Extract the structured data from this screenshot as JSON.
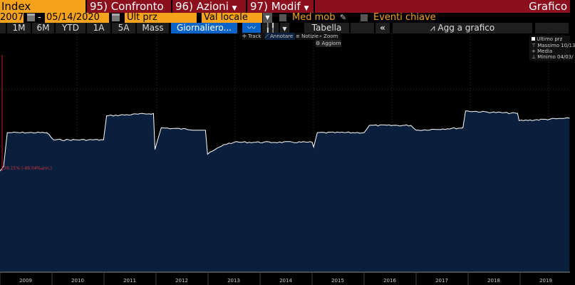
{
  "toolbar": {
    "security": "Index",
    "confronto": "95) Confronto",
    "azioni": "96) Azioni",
    "modif": "97) Modif",
    "grafico": "Grafico",
    "start_date": "2007",
    "date_sep": "-",
    "end_date": "05/14/2020",
    "price_field": "Ult prz",
    "currency": "Val locale",
    "moving_avg": "Med mob",
    "events": "Eventi chiave"
  },
  "periods": [
    "1M",
    "6M",
    "YTD",
    "1A",
    "5A",
    "Mass"
  ],
  "frequency": "Giornaliero...",
  "table_label": "Tabella",
  "collapse_label": "«",
  "add_to_chart": "Agg a grafico",
  "tools": {
    "track": "Track",
    "annotate": "Annotare",
    "news": "Notizie",
    "zoom": "Zoom",
    "refresh": "Aggiorn"
  },
  "legend": {
    "last": "Ultimo prz",
    "high": "Massimo 10/13",
    "avg": "Media",
    "low": "Minimo 04/03/"
  },
  "annotation": "-39.15% (-99.04%ann.)",
  "colors": {
    "accent": "#f6a21b",
    "header_red": "#8c0f1e",
    "active_blue": "#0a64c8",
    "area": "#0a1f3c",
    "line": "#ffffff",
    "marker": "#c81e28"
  },
  "chart_data": {
    "type": "area",
    "xlabel": "",
    "ylabel": "",
    "x_ticks": [
      "2009",
      "2010",
      "2011",
      "2012",
      "2013",
      "2014",
      "2015",
      "2016",
      "2017",
      "2018",
      "2019"
    ],
    "y_scale": "relative (no axis labels shown)",
    "grid": true,
    "legend": "top-right",
    "points": [
      [
        2009.0,
        43
      ],
      [
        2009.07,
        45
      ],
      [
        2009.14,
        59
      ],
      [
        2009.9,
        59
      ],
      [
        2010.03,
        56
      ],
      [
        2010.99,
        56
      ],
      [
        2011.05,
        66
      ],
      [
        2011.95,
        67
      ],
      [
        2011.98,
        52
      ],
      [
        2012.1,
        61
      ],
      [
        2012.95,
        60
      ],
      [
        2012.99,
        50
      ],
      [
        2013.3,
        54
      ],
      [
        2013.5,
        55
      ],
      [
        2015.0,
        55
      ],
      [
        2015.03,
        53
      ],
      [
        2015.1,
        59
      ],
      [
        2016.0,
        59
      ],
      [
        2016.1,
        62
      ],
      [
        2016.9,
        62
      ],
      [
        2017.0,
        60
      ],
      [
        2017.9,
        61
      ],
      [
        2017.95,
        68
      ],
      [
        2018.95,
        67
      ],
      [
        2018.98,
        64
      ],
      [
        2019.95,
        65
      ]
    ]
  }
}
